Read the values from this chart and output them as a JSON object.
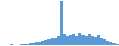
{
  "values": [
    1,
    1,
    1,
    2,
    1,
    1,
    2,
    2,
    3,
    4,
    5,
    6,
    7,
    9,
    11,
    13,
    15,
    17,
    20,
    100,
    24,
    20,
    22,
    25,
    21,
    28,
    22,
    20,
    24,
    20,
    18,
    22,
    16,
    14,
    10,
    7,
    4,
    2
  ],
  "bar_color": "#5b9bd5",
  "background_color": "#ffffff"
}
